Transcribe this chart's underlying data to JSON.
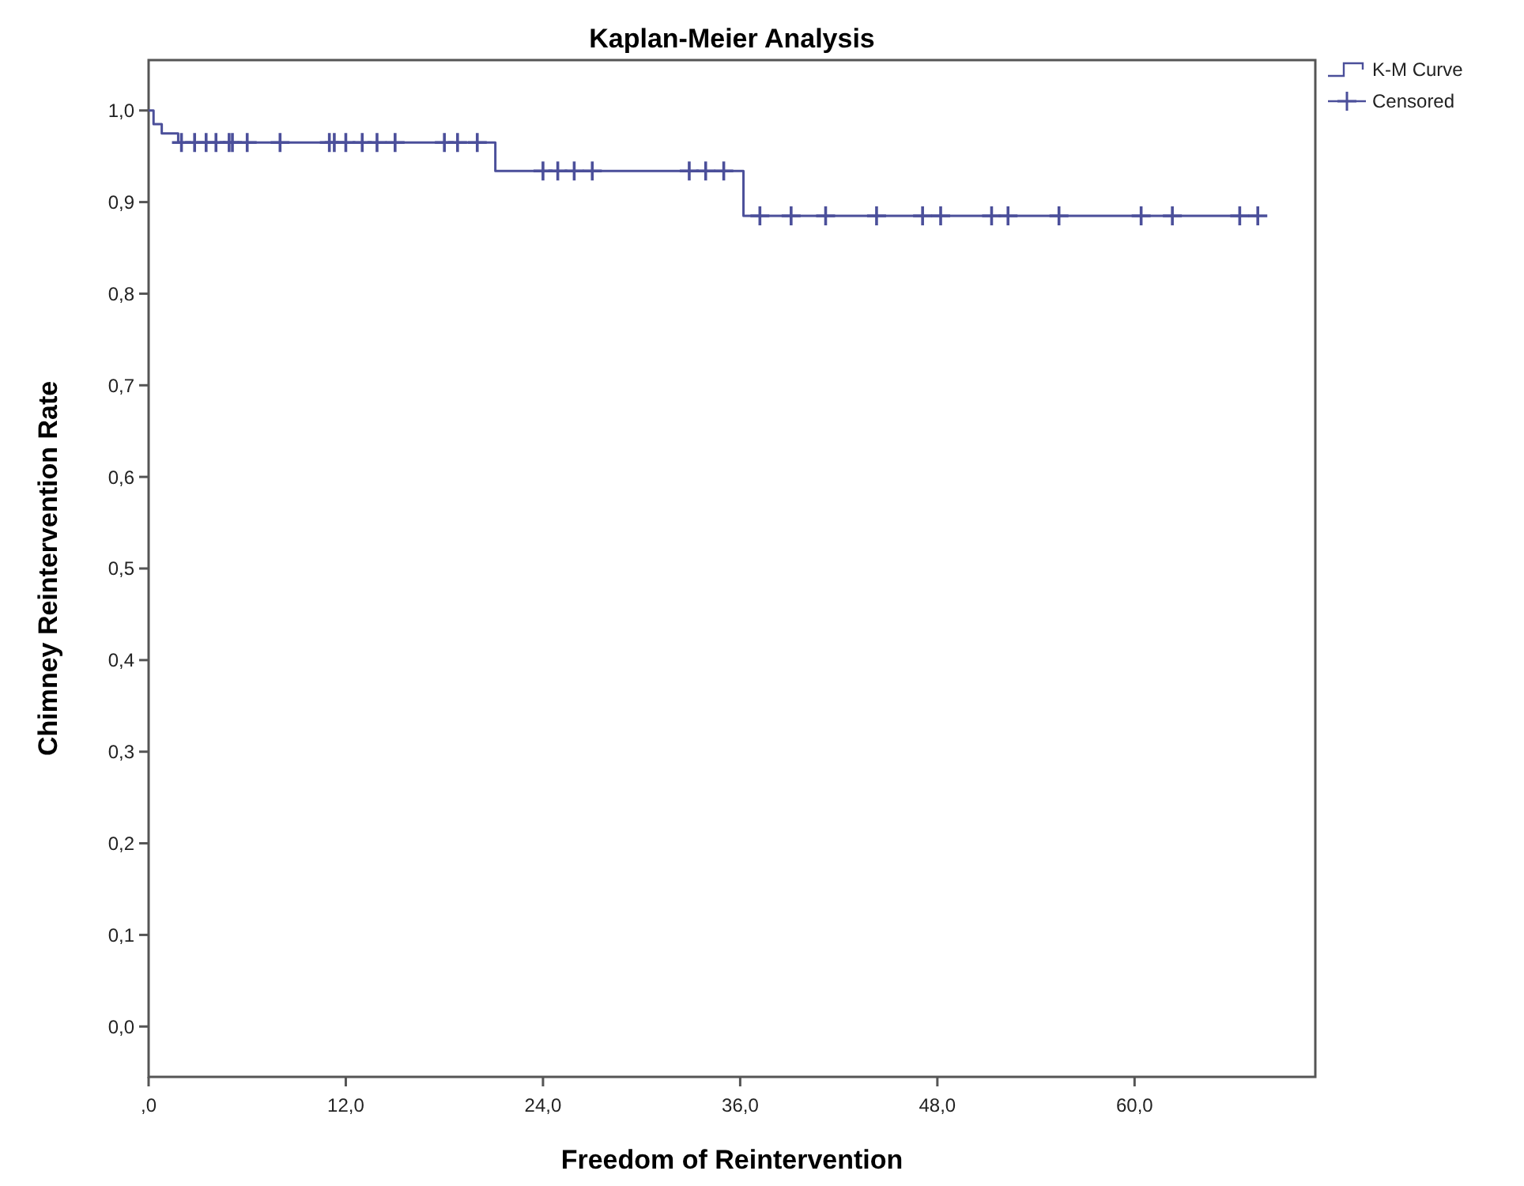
{
  "chart_data": {
    "type": "step",
    "title": "Kaplan-Meier Analysis",
    "xlabel": "Freedom of Reintervention",
    "ylabel": "Chimney Reintervention Rate",
    "xlim": [
      0,
      71
    ],
    "xticks": [
      {
        "value": 0,
        "label": ",0"
      },
      {
        "value": 12,
        "label": "12,0"
      },
      {
        "value": 24,
        "label": "24,0"
      },
      {
        "value": 36,
        "label": "36,0"
      },
      {
        "value": 48,
        "label": "48,0"
      },
      {
        "value": 60,
        "label": "60,0"
      }
    ],
    "ylim": [
      -0.055,
      1.055
    ],
    "yticks": [
      {
        "value": 0,
        "label": "0,0"
      },
      {
        "value": 0.1,
        "label": "0,1"
      },
      {
        "value": 0.2,
        "label": "0,2"
      },
      {
        "value": 0.3,
        "label": "0,3"
      },
      {
        "value": 0.4,
        "label": "0,4"
      },
      {
        "value": 0.5,
        "label": "0,5"
      },
      {
        "value": 0.6,
        "label": "0,6"
      },
      {
        "value": 0.7,
        "label": "0,7"
      },
      {
        "value": 0.8,
        "label": "0,8"
      },
      {
        "value": 0.9,
        "label": "0,9"
      },
      {
        "value": 1,
        "label": "1,0"
      }
    ],
    "legend": "top right",
    "grid": false,
    "series": [
      {
        "name": "K-M Curve",
        "color": "#4b4f9a",
        "marker": "none",
        "x": [
          0,
          0.3,
          0.8,
          1.8,
          21.1,
          36.2,
          67.5
        ],
        "values": [
          1,
          0.985,
          0.975,
          0.965,
          0.934,
          0.885,
          0.885
        ]
      },
      {
        "name": "Censored",
        "type": "scatter",
        "color": "#4b4f9a",
        "marker": "cross",
        "x": [
          2.0,
          2.8,
          3.5,
          4.1,
          4.9,
          5.1,
          6.0,
          8.0,
          11.0,
          11.3,
          12.0,
          13.0,
          13.9,
          15.0,
          18.0,
          18.8,
          20.0,
          24.0,
          24.9,
          25.9,
          27.0,
          32.9,
          33.9,
          35.0,
          37.2,
          39.1,
          41.2,
          44.3,
          47.1,
          48.2,
          51.3,
          52.3,
          55.4,
          60.4,
          62.3,
          66.4,
          67.5
        ],
        "values": [
          0.965,
          0.965,
          0.965,
          0.965,
          0.965,
          0.965,
          0.965,
          0.965,
          0.965,
          0.965,
          0.965,
          0.965,
          0.965,
          0.965,
          0.965,
          0.965,
          0.965,
          0.934,
          0.934,
          0.934,
          0.934,
          0.934,
          0.934,
          0.934,
          0.885,
          0.885,
          0.885,
          0.885,
          0.885,
          0.885,
          0.885,
          0.885,
          0.885,
          0.885,
          0.885,
          0.885,
          0.885
        ]
      }
    ]
  }
}
